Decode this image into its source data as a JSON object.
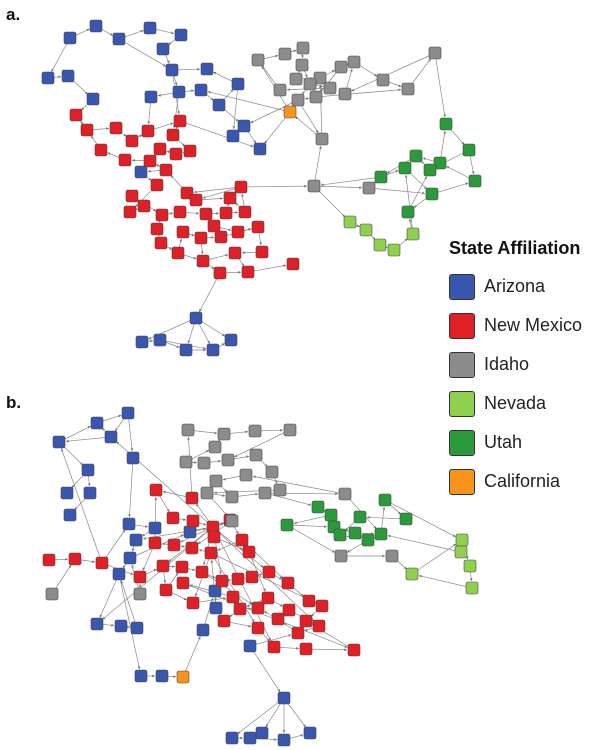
{
  "panels": [
    {
      "label": "a."
    },
    {
      "label": "b."
    }
  ],
  "legend": {
    "title": "State Affiliation",
    "items": [
      {
        "label": "Arizona",
        "color": "#3a57b0"
      },
      {
        "label": "New Mexico",
        "color": "#e02027"
      },
      {
        "label": "Idaho",
        "color": "#8c8c8c"
      },
      {
        "label": "Nevada",
        "color": "#8fd14f"
      },
      {
        "label": "Utah",
        "color": "#2a9a3a"
      },
      {
        "label": "California",
        "color": "#f7941d"
      }
    ]
  }
}
